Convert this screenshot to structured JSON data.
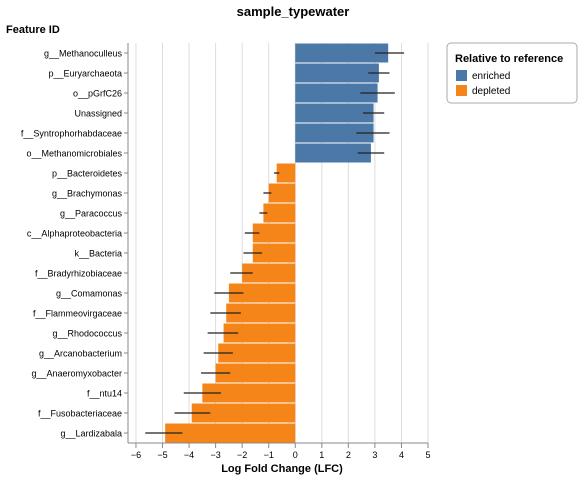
{
  "chart_data": {
    "type": "bar",
    "orientation": "horizontal",
    "title": "sample_typewater",
    "ylabel": "Feature ID",
    "xlabel": "Log Fold Change (LFC)",
    "xlim": [
      -6.3,
      5
    ],
    "xticks": [
      -6,
      -5,
      -4,
      -3,
      -2,
      -1,
      0,
      1,
      2,
      3,
      4,
      5
    ],
    "grid": true,
    "legend": {
      "title": "Relative to reference",
      "placement": "top-right",
      "entries": [
        {
          "label": "enriched",
          "color": "#4c78a8"
        },
        {
          "label": "depleted",
          "color": "#f58518"
        }
      ]
    },
    "categories": [
      "g__Methanoculleus",
      "p__Euryarchaeota",
      "o__pGrfC26",
      "Unassigned",
      "f__Syntrophorhabdaceae",
      "o__Methanomicrobiales",
      "p__Bacteroidetes",
      "g__Brachymonas",
      "g__Paracoccus",
      "c__Alphaproteobacteria",
      "k__Bacteria",
      "f__Bradyrhizobiaceae",
      "g__Comamonas",
      "f__Flammeovirgaceae",
      "g__Rhodococcus",
      "g__Arcanobacterium",
      "g__Anaeromyxobacter",
      "f__ntu14",
      "f__Fusobacteriaceae",
      "g__Lardizabala"
    ],
    "values": [
      3.5,
      3.15,
      3.1,
      2.95,
      2.95,
      2.85,
      -0.7,
      -1.0,
      -1.2,
      -1.6,
      -1.6,
      -2.0,
      -2.5,
      -2.6,
      -2.7,
      -2.9,
      -3.0,
      -3.5,
      -3.9,
      -4.9
    ],
    "error_low": [
      3.0,
      2.75,
      2.45,
      2.55,
      2.3,
      2.35,
      -0.8,
      -1.2,
      -1.35,
      -1.9,
      -1.95,
      -2.45,
      -3.05,
      -3.2,
      -3.3,
      -3.45,
      -3.55,
      -4.2,
      -4.55,
      -5.65
    ],
    "error_high": [
      4.1,
      3.55,
      3.75,
      3.35,
      3.55,
      3.35,
      -0.6,
      -0.9,
      -1.05,
      -1.35,
      -1.25,
      -1.6,
      -1.95,
      -2.05,
      -2.15,
      -2.35,
      -2.45,
      -2.8,
      -3.2,
      -4.25
    ],
    "status": [
      "enriched",
      "enriched",
      "enriched",
      "enriched",
      "enriched",
      "enriched",
      "depleted",
      "depleted",
      "depleted",
      "depleted",
      "depleted",
      "depleted",
      "depleted",
      "depleted",
      "depleted",
      "depleted",
      "depleted",
      "depleted",
      "depleted",
      "depleted"
    ]
  }
}
